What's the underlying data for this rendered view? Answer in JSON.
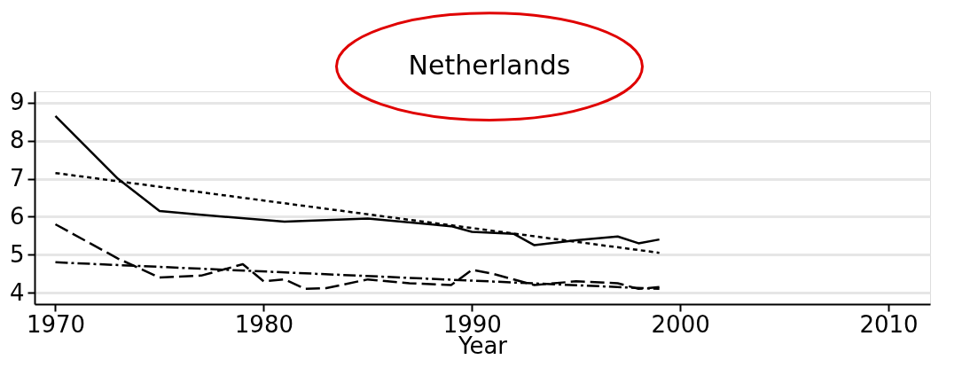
{
  "chart_data": {
    "type": "line",
    "title": "Netherlands",
    "xlabel": "Year",
    "xlim": [
      1969,
      2012
    ],
    "xticks": [
      1970,
      1980,
      1990,
      2000,
      2010
    ],
    "ylim": [
      3.7,
      9.3
    ],
    "yticks": [
      4,
      5,
      6,
      7,
      8,
      9
    ],
    "grid": "y",
    "marker": "none",
    "series": [
      {
        "color": "#000000",
        "line_style": "solid",
        "x": [
          1970,
          1973,
          1975,
          1977,
          1981,
          1985,
          1989,
          1990,
          1992,
          1993,
          1995,
          1997,
          1998,
          1999
        ],
        "values": [
          8.65,
          7.0,
          6.15,
          6.05,
          5.87,
          5.95,
          5.75,
          5.6,
          5.55,
          5.25,
          5.38,
          5.48,
          5.3,
          5.4
        ]
      },
      {
        "color": "#000000",
        "line_style": "dotted",
        "x": [
          1970,
          1999
        ],
        "values": [
          7.15,
          5.05
        ]
      },
      {
        "color": "#000000",
        "line_style": "dashed",
        "x": [
          1970,
          1973,
          1975,
          1977,
          1979,
          1980,
          1981,
          1982,
          1983,
          1985,
          1987,
          1989,
          1990,
          1991,
          1993,
          1995,
          1997,
          1998,
          1999
        ],
        "values": [
          5.8,
          4.9,
          4.4,
          4.45,
          4.75,
          4.3,
          4.35,
          4.1,
          4.12,
          4.35,
          4.25,
          4.2,
          4.6,
          4.5,
          4.2,
          4.3,
          4.25,
          4.1,
          4.15
        ]
      },
      {
        "color": "#000000",
        "line_style": "dashdot",
        "x": [
          1970,
          1999
        ],
        "values": [
          4.8,
          4.1
        ]
      }
    ]
  }
}
